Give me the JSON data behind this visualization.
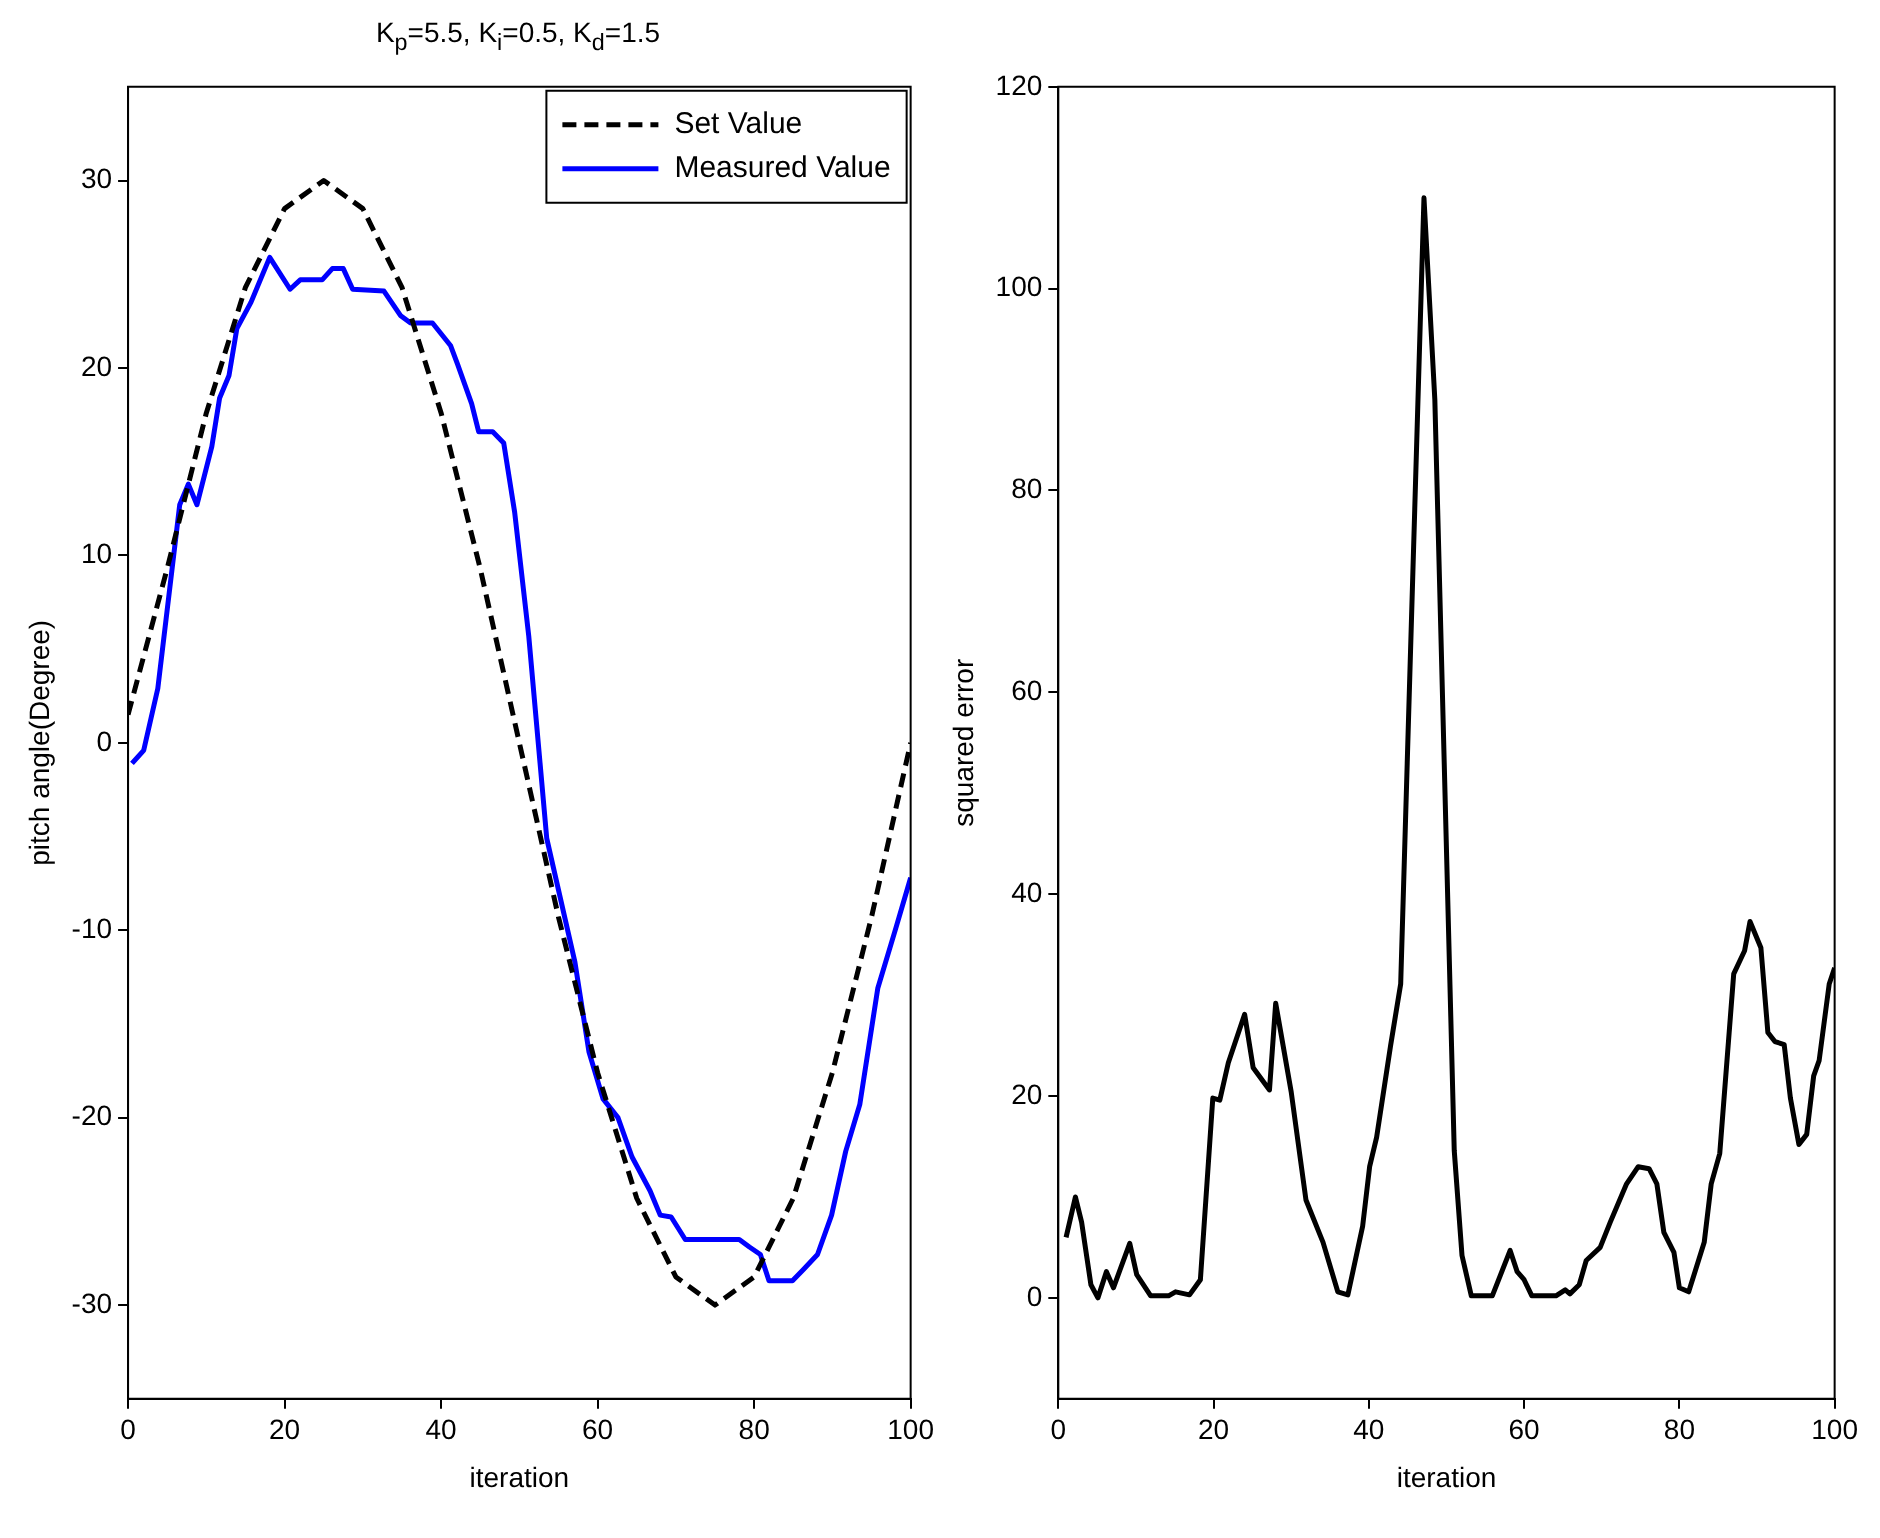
{
  "chart_data": [
    {
      "type": "line",
      "title": "K$_{p}$=5.5, K$_{i}$=0.5, K$_{d}$=1.5",
      "xlabel": "iteration",
      "ylabel": "pitch angle(Degree)",
      "xlim": [
        0,
        100
      ],
      "xticks": [
        0,
        20,
        40,
        60,
        80,
        100
      ],
      "ylim": [
        -35,
        35
      ],
      "yticks": [
        -30,
        -20,
        -10,
        0,
        10,
        20,
        30
      ],
      "grid": false,
      "legend": "top right",
      "marker": "none",
      "series": [
        {
          "name": "Set Value",
          "color": "#000000",
          "line_style": "dashed",
          "x": [
            0,
            5,
            10,
            15,
            20,
            25,
            30,
            35,
            40,
            45,
            50,
            55,
            60,
            65,
            70,
            75,
            80,
            85,
            90,
            95,
            100
          ],
          "values": [
            1.5,
            9.3,
            17.6,
            24.3,
            28.5,
            30,
            28.5,
            24.3,
            17.6,
            9.3,
            0,
            -9.3,
            -17.6,
            -24.3,
            -28.5,
            -30,
            -28.5,
            -24.3,
            -17.6,
            -9.3,
            0
          ]
        },
        {
          "name": "Measured Value",
          "color": "#0000ff",
          "line_style": "solid",
          "x": [
            0.5,
            2,
            3.8,
            6.6,
            7.7,
            8.8,
            10.7,
            11.7,
            12.9,
            13.9,
            15.7,
            18.1,
            20.7,
            22,
            24.8,
            26.1,
            27.5,
            28.7,
            32.7,
            34.8,
            36.1,
            38.9,
            41.2,
            42.1,
            43.9,
            44.8,
            46.6,
            48,
            49.4,
            51.2,
            53.5,
            57.1,
            58.9,
            60.7,
            62.6,
            64.4,
            66.7,
            68,
            69.4,
            71.2,
            78.1,
            79.4,
            80.8,
            81.9,
            84.9,
            86.3,
            88.1,
            89.9,
            91.7,
            93.5,
            95.8,
            98.1,
            100
          ],
          "values": [
            -1.1,
            -0.4,
            2.9,
            12.7,
            13.8,
            12.7,
            15.8,
            18.4,
            19.6,
            22.1,
            23.5,
            25.9,
            24.2,
            24.7,
            24.7,
            25.3,
            25.3,
            24.2,
            24.1,
            22.8,
            22.4,
            22.4,
            21.2,
            20.2,
            18.1,
            16.6,
            16.6,
            16,
            12.3,
            5.7,
            -5.1,
            -11.7,
            -16.5,
            -19,
            -20,
            -22.1,
            -23.9,
            -25.2,
            -25.3,
            -26.5,
            -26.5,
            -26.9,
            -27.3,
            -28.7,
            -28.7,
            -28.1,
            -27.3,
            -25.2,
            -21.8,
            -19.3,
            -13.1,
            -9.9,
            -7.2
          ]
        }
      ]
    },
    {
      "type": "line",
      "xlabel": "iteration",
      "ylabel": "squared error",
      "xlim": [
        0,
        100
      ],
      "xticks": [
        0,
        20,
        40,
        60,
        80,
        100
      ],
      "ylim": [
        -10,
        120
      ],
      "yticks": [
        0,
        20,
        40,
        60,
        80,
        100,
        120
      ],
      "grid": false,
      "legend": false,
      "marker": "none",
      "series": [
        {
          "color": "#000000",
          "line_style": "solid",
          "x": [
            1,
            2.2,
            3,
            4.2,
            5.1,
            6.2,
            7.1,
            9.2,
            10.1,
            11.9,
            14.2,
            15.1,
            16.9,
            18.3,
            19.9,
            20.8,
            21.9,
            24,
            25.1,
            27.2,
            28,
            30,
            31.9,
            34.1,
            36,
            37.3,
            39.2,
            40.1,
            41,
            42.8,
            44.1,
            47.1,
            48.5,
            51,
            52,
            53.2,
            55.9,
            58.2,
            59.1,
            60,
            61,
            64.1,
            65.3,
            65.9,
            67.1,
            68,
            69.8,
            71.1,
            73.2,
            74.7,
            76.1,
            77.1,
            78,
            79.3,
            80,
            81.2,
            83.2,
            84.1,
            85.2,
            87,
            88.4,
            89.1,
            90.5,
            91.4,
            92.3,
            93.5,
            94.3,
            95.4,
            96.4,
            97.3,
            98,
            99.3,
            100
          ],
          "values": [
            6,
            10,
            7.5,
            1.3,
            0,
            2.6,
            1,
            5.4,
            2.3,
            0.2,
            0.2,
            0.6,
            0.3,
            1.8,
            19.8,
            19.6,
            23.3,
            28.1,
            22.8,
            20.6,
            29.2,
            20.4,
            9.7,
            5.5,
            0.6,
            0.3,
            7.1,
            13,
            15.9,
            25,
            31.1,
            109,
            89,
            14.6,
            4.2,
            0.2,
            0.2,
            4.7,
            2.6,
            1.8,
            0.2,
            0.2,
            0.8,
            0.4,
            1.3,
            3.7,
            5,
            7.5,
            11.3,
            13,
            12.8,
            11.3,
            6.5,
            4.5,
            1,
            0.6,
            5.5,
            11.3,
            14.3,
            32.1,
            34.4,
            37.3,
            34.7,
            26.3,
            25.4,
            25.1,
            19.8,
            15.2,
            16.2,
            22,
            23.5,
            31.1,
            32.7
          ]
        }
      ]
    }
  ]
}
